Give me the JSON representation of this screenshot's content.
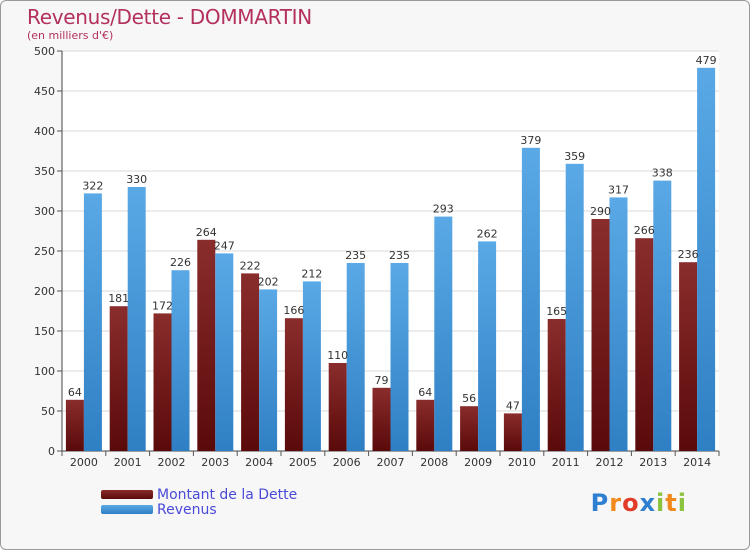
{
  "title": "Revenus/Dette - DOMMARTIN",
  "subtitle": "(en milliers d'€)",
  "colors": {
    "dette_top": "#8a2c2c",
    "dette_bottom": "#5a0a0a",
    "revenus_top": "#5aa9e6",
    "revenus_bottom": "#2f7fc4",
    "title": "#b3305f",
    "legend_text": "#4a4ad8"
  },
  "chart_data": {
    "type": "bar",
    "categories": [
      "2000",
      "2001",
      "2002",
      "2003",
      "2004",
      "2005",
      "2006",
      "2007",
      "2008",
      "2009",
      "2010",
      "2011",
      "2012",
      "2013",
      "2014"
    ],
    "series": [
      {
        "name": "Montant de la Dette",
        "values": [
          64,
          181,
          172,
          264,
          222,
          166,
          110,
          79,
          64,
          56,
          47,
          165,
          290,
          266,
          236
        ]
      },
      {
        "name": "Revenus",
        "values": [
          322,
          330,
          226,
          247,
          202,
          212,
          235,
          235,
          293,
          262,
          379,
          359,
          317,
          338,
          479
        ]
      }
    ],
    "ylim": [
      0,
      500
    ],
    "yticks": [
      0,
      50,
      100,
      150,
      200,
      250,
      300,
      350,
      400,
      450,
      500
    ],
    "grid": true,
    "legend": "bottom-left"
  },
  "logo": {
    "letters": [
      "P",
      "r",
      "o",
      "x",
      "i",
      "t",
      "i"
    ],
    "colors": [
      "#2e7fd1",
      "#f08a1c",
      "#e23b2a",
      "#2e7fd1",
      "#8ac43f",
      "#f08a1c",
      "#8ac43f"
    ]
  }
}
